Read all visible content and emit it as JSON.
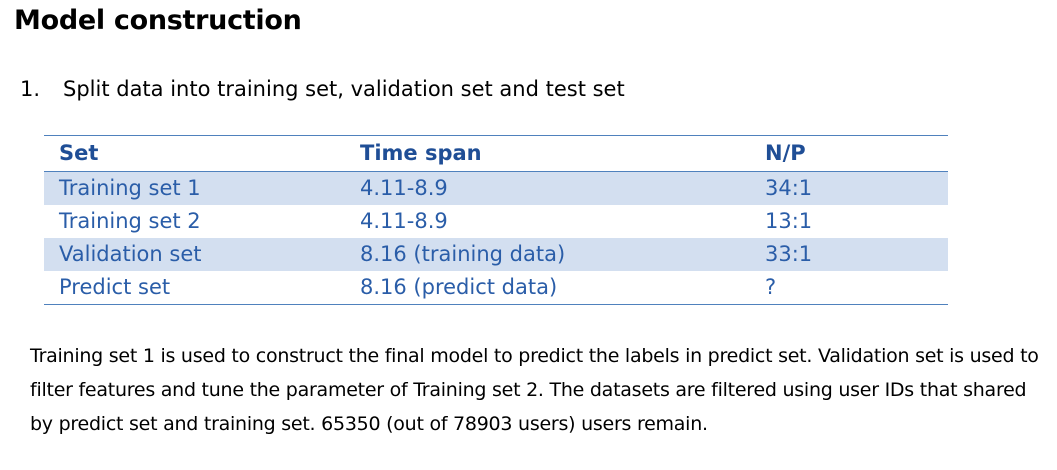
{
  "title": "Model construction",
  "step": {
    "number": "1.",
    "text": "Split data into training set, validation set and test set"
  },
  "table": {
    "headers": [
      "Set",
      "Time span",
      "N/P"
    ],
    "rows": [
      [
        "Training set 1",
        "4.11-8.9",
        "34:1"
      ],
      [
        "Training set 2",
        "4.11-8.9",
        "13:1"
      ],
      [
        "Validation set",
        "8.16 (training data)",
        "33:1"
      ],
      [
        "Predict set",
        "8.16 (predict data)",
        "?"
      ]
    ]
  },
  "paragraph": "Training set 1 is used to construct the final model to predict the labels in predict set. Validation set is used to filter features and tune the parameter of Training set 2. The datasets are filtered using user IDs that shared by predict set and training set. 65350 (out of 78903 users) users remain."
}
